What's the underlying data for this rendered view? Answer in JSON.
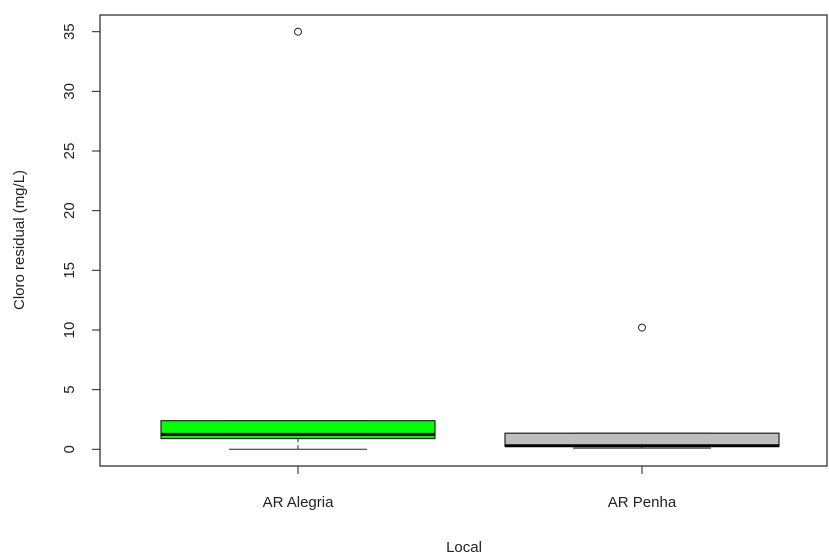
{
  "chart_data": {
    "type": "boxplot",
    "x_label": "Local",
    "y_label": "Cloro residual (mg/L)",
    "categories": [
      "AR Alegria",
      "AR Penha"
    ],
    "series": [
      {
        "name": "AR Alegria",
        "color": "#00ff00",
        "min": 0,
        "q1": 0.9,
        "median": 1.25,
        "q3": 2.4,
        "max": 2.4,
        "outliers": [
          35
        ]
      },
      {
        "name": "AR Penha",
        "color": "#bebebe",
        "min": 0.1,
        "q1": 0.25,
        "median": 0.3,
        "q3": 1.35,
        "max": 1.35,
        "outliers": [
          10.2
        ]
      }
    ],
    "ylim": [
      -1.4,
      36.4
    ],
    "yticks": [
      0,
      5,
      10,
      15,
      20,
      25,
      30,
      35
    ]
  }
}
